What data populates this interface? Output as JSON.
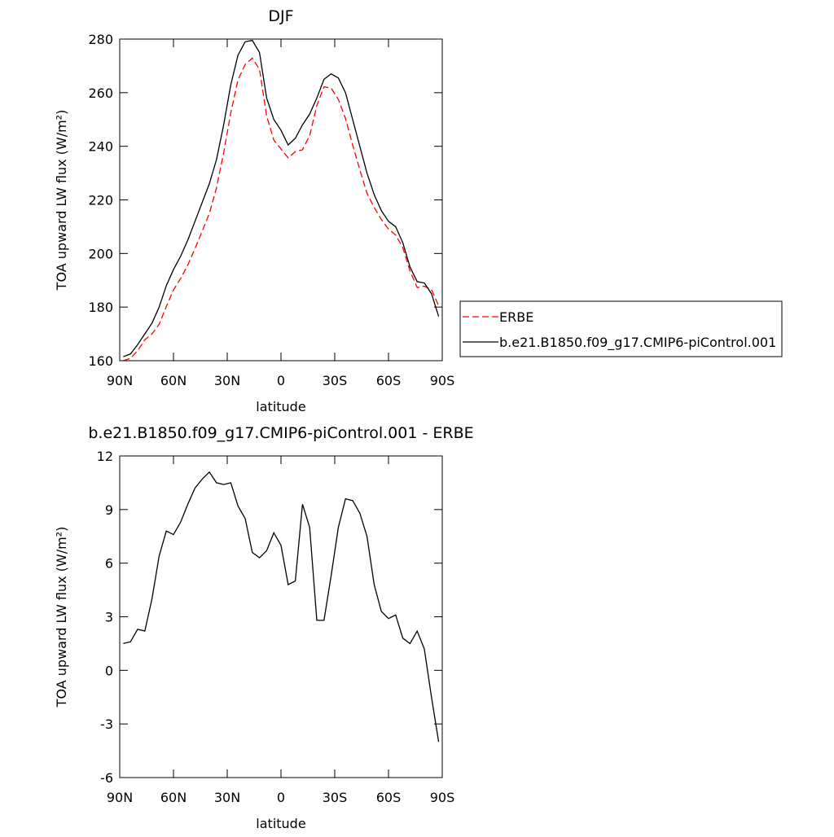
{
  "chart_data": [
    {
      "type": "line",
      "title": "DJF",
      "xlabel": "latitude",
      "ylabel": "TOA upward LW flux (W/m²)",
      "x": [
        88,
        84,
        80,
        76,
        72,
        68,
        64,
        60,
        56,
        52,
        48,
        44,
        40,
        36,
        32,
        28,
        24,
        20,
        16,
        12,
        8,
        4,
        0,
        -4,
        -8,
        -12,
        -16,
        -20,
        -24,
        -28,
        -32,
        -36,
        -40,
        -44,
        -48,
        -52,
        -56,
        -60,
        -64,
        -68,
        -72,
        -76,
        -80,
        -84,
        -88
      ],
      "series": [
        {
          "name": "ERBE",
          "color": "#ff0000",
          "dash": true,
          "values": [
            160,
            160.9,
            163.7,
            167.8,
            170,
            173.6,
            180.2,
            186.4,
            190.7,
            195.7,
            201.8,
            208.3,
            214.9,
            224.5,
            237.6,
            252.5,
            264.8,
            270.5,
            272.9,
            268.7,
            251.3,
            242.3,
            239,
            235.7,
            238,
            238.7,
            244,
            255.2,
            262.2,
            261.7,
            257.5,
            250.4,
            240.5,
            231.2,
            222.5,
            217.2,
            212.7,
            209.1,
            206.9,
            202.2,
            193.5,
            187.3,
            187.8,
            186.5,
            180.5
          ]
        },
        {
          "name": "b.e21.B1850.f09_g17.CMIP6-piControl.001",
          "color": "#000000",
          "dash": false,
          "values": [
            161.5,
            162.5,
            166,
            170,
            174,
            180,
            188,
            194,
            199,
            205,
            212,
            219,
            226,
            235,
            248,
            263,
            274,
            279,
            279.5,
            275,
            258,
            250,
            246,
            240.5,
            243,
            248,
            252,
            258,
            265,
            267,
            265.5,
            260,
            250,
            240,
            230,
            222,
            216,
            212,
            210,
            204,
            195,
            189.5,
            189,
            185,
            176.5
          ]
        }
      ],
      "xlim": [
        90,
        -90
      ],
      "xticks": [
        {
          "value": 90,
          "label": "90N"
        },
        {
          "value": 60,
          "label": "60N"
        },
        {
          "value": 30,
          "label": "30N"
        },
        0,
        {
          "value": -30,
          "label": "30S"
        },
        {
          "value": -60,
          "label": "60S"
        },
        {
          "value": -90,
          "label": "90S"
        }
      ],
      "ylim": [
        160,
        280
      ],
      "yticks": [
        160,
        180,
        200,
        220,
        240,
        260,
        280
      ],
      "legend": "right"
    },
    {
      "type": "line",
      "title": "b.e21.B1850.f09_g17.CMIP6-piControl.001 - ERBE",
      "xlabel": "latitude",
      "ylabel": "TOA upward LW flux (W/m²)",
      "x": [
        88,
        84,
        80,
        76,
        72,
        68,
        64,
        60,
        56,
        52,
        48,
        44,
        40,
        36,
        32,
        28,
        24,
        20,
        16,
        12,
        8,
        4,
        0,
        -4,
        -8,
        -12,
        -16,
        -20,
        -24,
        -28,
        -32,
        -36,
        -40,
        -44,
        -48,
        -52,
        -56,
        -60,
        -64,
        -68,
        -72,
        -76,
        -80,
        -84,
        -88
      ],
      "series": [
        {
          "color": "#000000",
          "dash": false,
          "values": [
            1.5,
            1.6,
            2.3,
            2.2,
            4.0,
            6.4,
            7.8,
            7.6,
            8.3,
            9.3,
            10.2,
            10.7,
            11.1,
            10.5,
            10.4,
            10.5,
            9.2,
            8.5,
            6.6,
            6.3,
            6.7,
            7.7,
            7.0,
            4.8,
            5.0,
            9.3,
            8.0,
            2.8,
            2.8,
            5.3,
            8.0,
            9.6,
            9.5,
            8.8,
            7.5,
            4.8,
            3.3,
            2.9,
            3.1,
            1.8,
            1.5,
            2.2,
            1.2,
            -1.5,
            -4.0
          ]
        }
      ],
      "xlim": [
        90,
        -90
      ],
      "xticks": [
        {
          "value": 90,
          "label": "90N"
        },
        {
          "value": 60,
          "label": "60N"
        },
        {
          "value": 30,
          "label": "30N"
        },
        0,
        {
          "value": -30,
          "label": "30S"
        },
        {
          "value": -60,
          "label": "60S"
        },
        {
          "value": -90,
          "label": "90S"
        }
      ],
      "ylim": [
        -6,
        12
      ],
      "yticks": [
        -6,
        -3,
        0,
        3,
        6,
        9,
        12
      ]
    }
  ]
}
